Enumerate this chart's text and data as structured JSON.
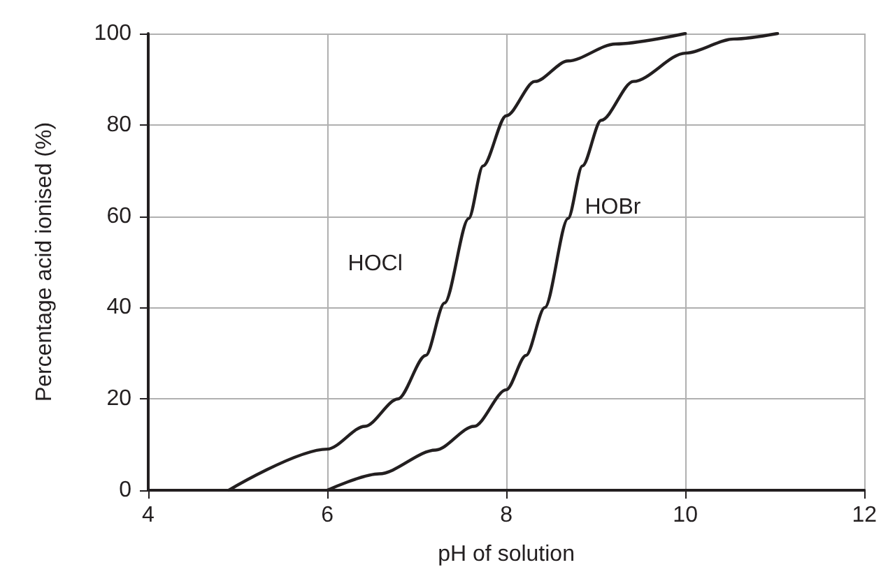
{
  "chart_data": {
    "type": "line",
    "xlabel": "pH of solution",
    "ylabel": "Percentage acid ionised (%)",
    "xlim": [
      4,
      12
    ],
    "xticks": [
      4,
      6,
      8,
      10,
      12
    ],
    "ylim": [
      0,
      100
    ],
    "yticks": [
      0,
      20,
      40,
      60,
      80,
      100
    ],
    "grid": true,
    "marker": "none",
    "line_style": "solid",
    "series": [
      {
        "name": "HOCl",
        "color": "#231f20",
        "x": [
          4.9,
          6.0,
          6.42,
          6.79,
          7.1,
          7.31,
          7.58,
          7.74,
          8.0,
          8.32,
          8.69,
          9.22,
          10.0
        ],
        "values": [
          0,
          9,
          14,
          20,
          29.5,
          41,
          59.5,
          71,
          82,
          89.5,
          94,
          97.7,
          100
        ]
      },
      {
        "name": "HOBr",
        "color": "#231f20",
        "x": [
          6.0,
          6.58,
          7.21,
          7.64,
          8.0,
          8.22,
          8.43,
          8.69,
          8.85,
          9.06,
          9.42,
          10.0,
          10.54,
          11.03
        ],
        "values": [
          0,
          3.6,
          8.8,
          14,
          22,
          29.5,
          40,
          59.5,
          71,
          81,
          89.5,
          95.7,
          98.8,
          100
        ]
      }
    ]
  }
}
